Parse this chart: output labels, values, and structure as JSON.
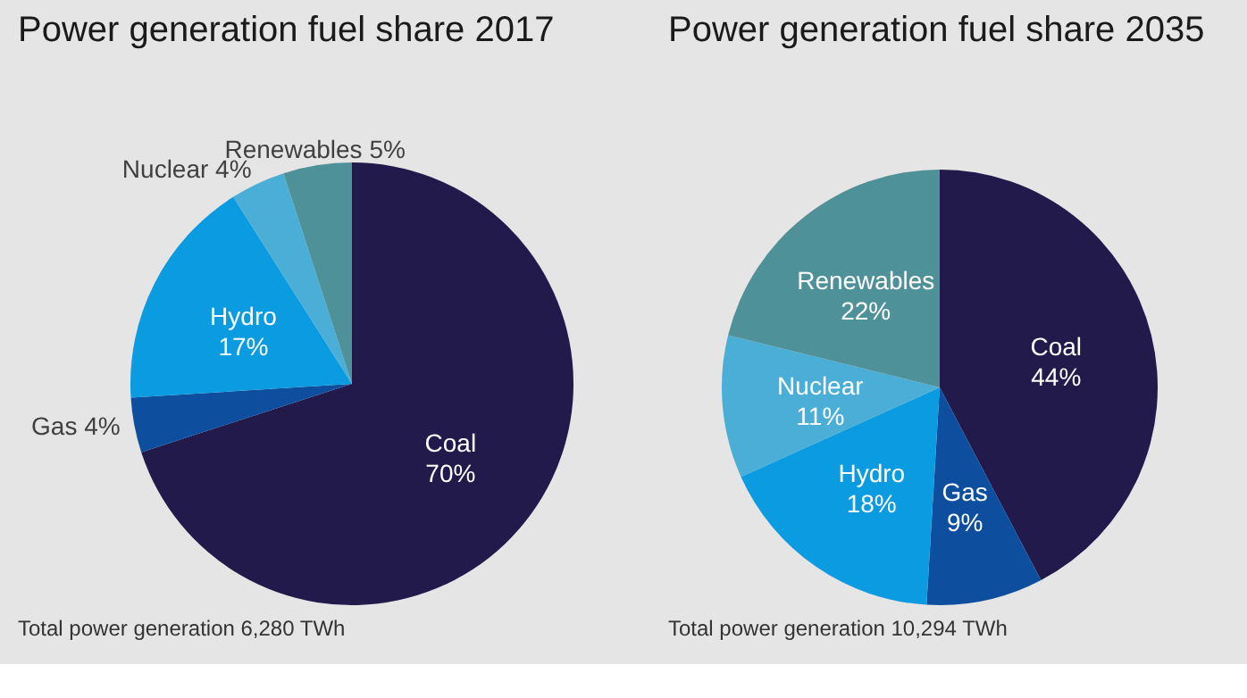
{
  "chart_data": [
    {
      "type": "pie",
      "title": "Power generation fuel share 2017",
      "categories": [
        "Coal",
        "Gas",
        "Hydro",
        "Nuclear",
        "Renewables"
      ],
      "values": [
        70,
        4,
        17,
        4,
        5
      ],
      "value_labels": [
        "70%",
        "4%",
        "17%",
        "4%",
        "5%"
      ],
      "colors": [
        "#211a4b",
        "#0d4f9e",
        "#0b9be0",
        "#4aaed6",
        "#4e9199"
      ],
      "annotations": [
        "Total power generation 6,280 TWh"
      ]
    },
    {
      "type": "pie",
      "title": "Power generation fuel share 2035",
      "categories": [
        "Coal",
        "Gas",
        "Hydro",
        "Nuclear",
        "Renewables"
      ],
      "values": [
        44,
        9,
        18,
        11,
        22
      ],
      "value_labels": [
        "44%",
        "9%",
        "18%",
        "11%",
        "22%"
      ],
      "colors": [
        "#211a4b",
        "#0d4f9e",
        "#0b9be0",
        "#4aaed6",
        "#4e9199"
      ],
      "annotations": [
        "Total power generation 10,294 TWh"
      ]
    }
  ]
}
